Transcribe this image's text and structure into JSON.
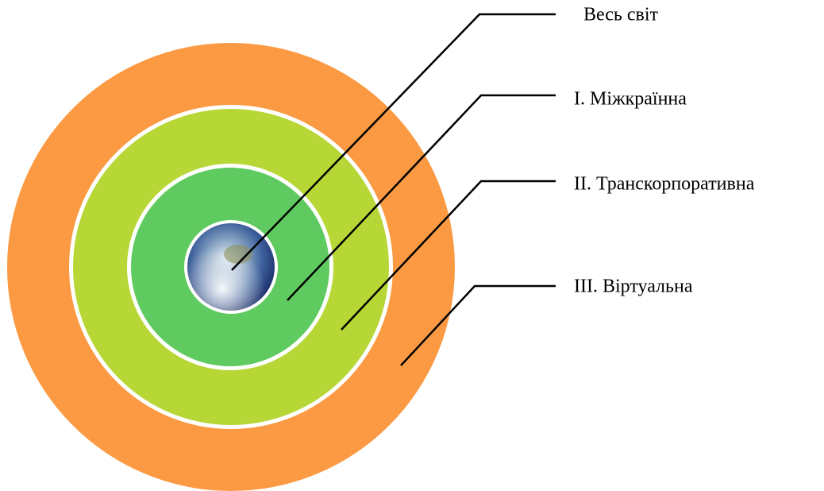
{
  "nodes": [
    {
      "label": "Весь світ"
    },
    {
      "label": "I. Міжкраїнна"
    },
    {
      "label": "II. Транскорпоративна"
    },
    {
      "label": "III. Віртуальна"
    }
  ]
}
